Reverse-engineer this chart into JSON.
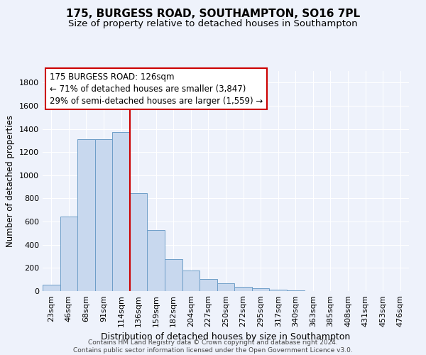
{
  "title": "175, BURGESS ROAD, SOUTHAMPTON, SO16 7PL",
  "subtitle": "Size of property relative to detached houses in Southampton",
  "xlabel": "Distribution of detached houses by size in Southampton",
  "ylabel": "Number of detached properties",
  "categories": [
    "23sqm",
    "46sqm",
    "68sqm",
    "91sqm",
    "114sqm",
    "136sqm",
    "159sqm",
    "182sqm",
    "204sqm",
    "227sqm",
    "250sqm",
    "272sqm",
    "295sqm",
    "317sqm",
    "340sqm",
    "363sqm",
    "385sqm",
    "408sqm",
    "431sqm",
    "453sqm",
    "476sqm"
  ],
  "values": [
    55,
    645,
    1310,
    1310,
    1375,
    845,
    530,
    275,
    180,
    105,
    70,
    35,
    25,
    15,
    5,
    3,
    2,
    1,
    1,
    0,
    0
  ],
  "bar_color": "#c8d8ee",
  "bar_edge_color": "#6e9ec8",
  "vline_x_idx": 4.5,
  "vline_color": "#cc0000",
  "annotation_text": "175 BURGESS ROAD: 126sqm\n← 71% of detached houses are smaller (3,847)\n29% of semi-detached houses are larger (1,559) →",
  "annotation_box_color": "#ffffff",
  "annotation_box_edge": "#cc0000",
  "ylim": [
    0,
    1900
  ],
  "yticks": [
    0,
    200,
    400,
    600,
    800,
    1000,
    1200,
    1400,
    1600,
    1800
  ],
  "background_color": "#eef2fb",
  "grid_color": "#ffffff",
  "footer": "Contains HM Land Registry data © Crown copyright and database right 2024.\nContains public sector information licensed under the Open Government Licence v3.0.",
  "title_fontsize": 11,
  "subtitle_fontsize": 9.5,
  "ylabel_fontsize": 8.5,
  "xlabel_fontsize": 9,
  "tick_fontsize": 8,
  "annot_fontsize": 8.5
}
